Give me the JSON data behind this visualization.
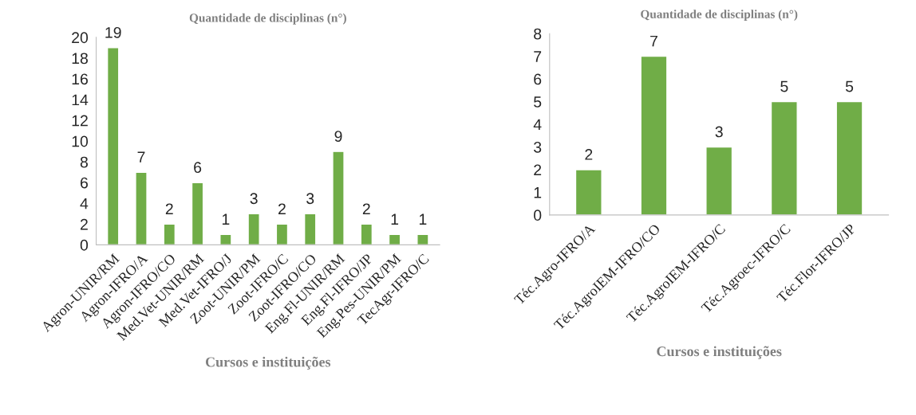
{
  "chart_data": [
    {
      "type": "bar",
      "title": "Quantidade de disciplinas (n°)",
      "xlabel": "Cursos e instituições",
      "categories": [
        "Agron-UNIR/RM",
        "Agron-IFRO/A",
        "Agron-IFRO/CO",
        "Med.Vet-UNIR/RM",
        "Med.Vet-IFRO/J",
        "Zoot-UNIR/PM",
        "Zoot-IFRO/C",
        "Zoot-IFRO/CO",
        "Eng.Fl-UNIR/RM",
        "Eng.Fl-IFRO/JP",
        "Eng.Pes-UNIR/PM",
        "TecAgr-IFRO/C"
      ],
      "values": [
        19,
        7,
        2,
        6,
        1,
        3,
        2,
        3,
        9,
        2,
        1,
        1
      ],
      "color": "#70ad47",
      "ylim": [
        0,
        20
      ],
      "yticks": [
        0,
        2,
        4,
        6,
        8,
        10,
        12,
        14,
        16,
        18,
        20
      ],
      "data_labels": true
    },
    {
      "type": "bar",
      "title": "Quantidade de disciplinas (n°)",
      "xlabel": "Cursos e instituições",
      "categories": [
        "Téc.Agro-IFRO/A",
        "Téc.AgroIEM-IFRO/CO",
        "Téc.AgroIEM-IFRO/C",
        "Téc.Agroec-IFRO/C",
        "Téc.Flor-IFRO/JP"
      ],
      "values": [
        2,
        7,
        3,
        5,
        5
      ],
      "color": "#70ad47",
      "ylim": [
        0,
        8
      ],
      "yticks": [
        0,
        1,
        2,
        3,
        4,
        5,
        6,
        7,
        8
      ],
      "data_labels": true
    }
  ]
}
